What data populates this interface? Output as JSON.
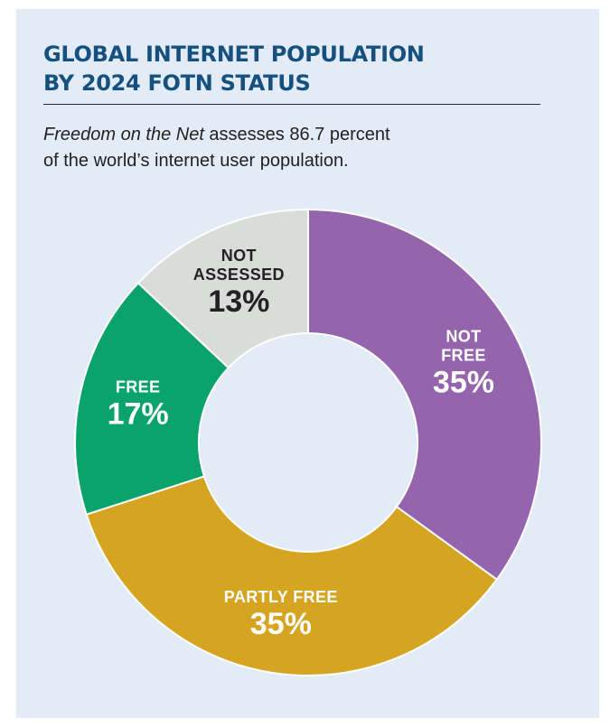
{
  "header": {
    "title_line1": "GLOBAL INTERNET POPULATION",
    "title_line2": "BY 2024 FOTN STATUS",
    "subtitle_italic": "Freedom on the Net",
    "subtitle_rest_line1": " assesses 86.7 percent",
    "subtitle_line2": "of the world’s internet user population."
  },
  "colors": {
    "title": "#15507f",
    "background": "#e3ecf6"
  },
  "chart_data": {
    "type": "pie",
    "variant": "donut",
    "unit": "%",
    "slices": [
      {
        "label_lines": [
          "NOT",
          "FREE"
        ],
        "value": 35,
        "display": "35%",
        "color": "#9464ad",
        "text_color": "#ffffff"
      },
      {
        "label_lines": [
          "PARTLY FREE"
        ],
        "value": 35,
        "display": "35%",
        "color": "#d5a421",
        "text_color": "#ffffff"
      },
      {
        "label_lines": [
          "FREE"
        ],
        "value": 17,
        "display": "17%",
        "color": "#0aa36b",
        "text_color": "#ffffff"
      },
      {
        "label_lines": [
          "NOT",
          "ASSESSED"
        ],
        "value": 13,
        "display": "13%",
        "color": "#d9dcd9",
        "text_color": "#222222"
      }
    ]
  }
}
